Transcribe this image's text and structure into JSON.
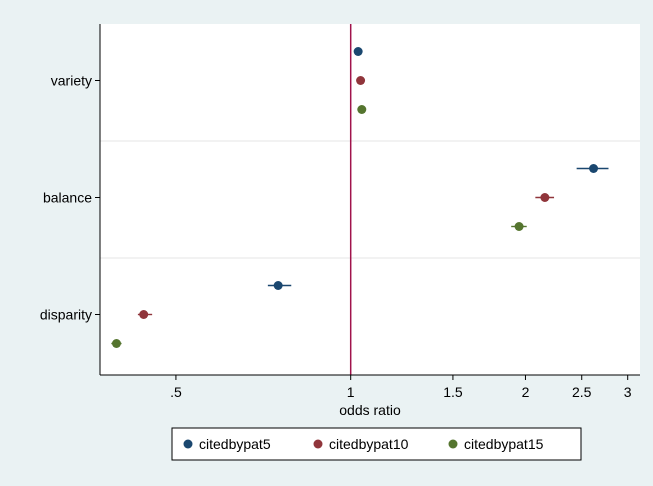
{
  "chart_data": {
    "type": "scatter",
    "title": "",
    "xlabel": "odds ratio",
    "ylabel": "",
    "x_scale": "log",
    "xlim": [
      0.37,
      3.15
    ],
    "x_ticks": [
      {
        "value": 0.5,
        "label": ".5"
      },
      {
        "value": 1,
        "label": "1"
      },
      {
        "value": 1.5,
        "label": "1.5"
      },
      {
        "value": 2,
        "label": "2"
      },
      {
        "value": 2.5,
        "label": "2.5"
      },
      {
        "value": 3,
        "label": "3"
      }
    ],
    "reference_line": {
      "x": 1,
      "color": "#a0134b"
    },
    "categories": [
      "variety",
      "balance",
      "disparity"
    ],
    "grid": "horizontal separators",
    "legend_position": "bottom",
    "series": [
      {
        "name": "citedbypat5",
        "color": "#1a476f",
        "points": [
          {
            "category": "variety",
            "estimate": 1.03,
            "ci_low": 1.02,
            "ci_high": 1.04
          },
          {
            "category": "balance",
            "estimate": 2.62,
            "ci_low": 2.45,
            "ci_high": 2.78
          },
          {
            "category": "disparity",
            "estimate": 0.75,
            "ci_low": 0.72,
            "ci_high": 0.79
          }
        ]
      },
      {
        "name": "citedbypat10",
        "color": "#90353b",
        "points": [
          {
            "category": "variety",
            "estimate": 1.04,
            "ci_low": 1.03,
            "ci_high": 1.05
          },
          {
            "category": "balance",
            "estimate": 2.16,
            "ci_low": 2.08,
            "ci_high": 2.24
          },
          {
            "category": "disparity",
            "estimate": 0.44,
            "ci_low": 0.43,
            "ci_high": 0.455
          }
        ]
      },
      {
        "name": "citedbypat15",
        "color": "#55752f",
        "points": [
          {
            "category": "variety",
            "estimate": 1.045,
            "ci_low": 1.035,
            "ci_high": 1.055
          },
          {
            "category": "balance",
            "estimate": 1.95,
            "ci_low": 1.89,
            "ci_high": 2.01
          },
          {
            "category": "disparity",
            "estimate": 0.395,
            "ci_low": 0.387,
            "ci_high": 0.403
          }
        ]
      }
    ]
  }
}
